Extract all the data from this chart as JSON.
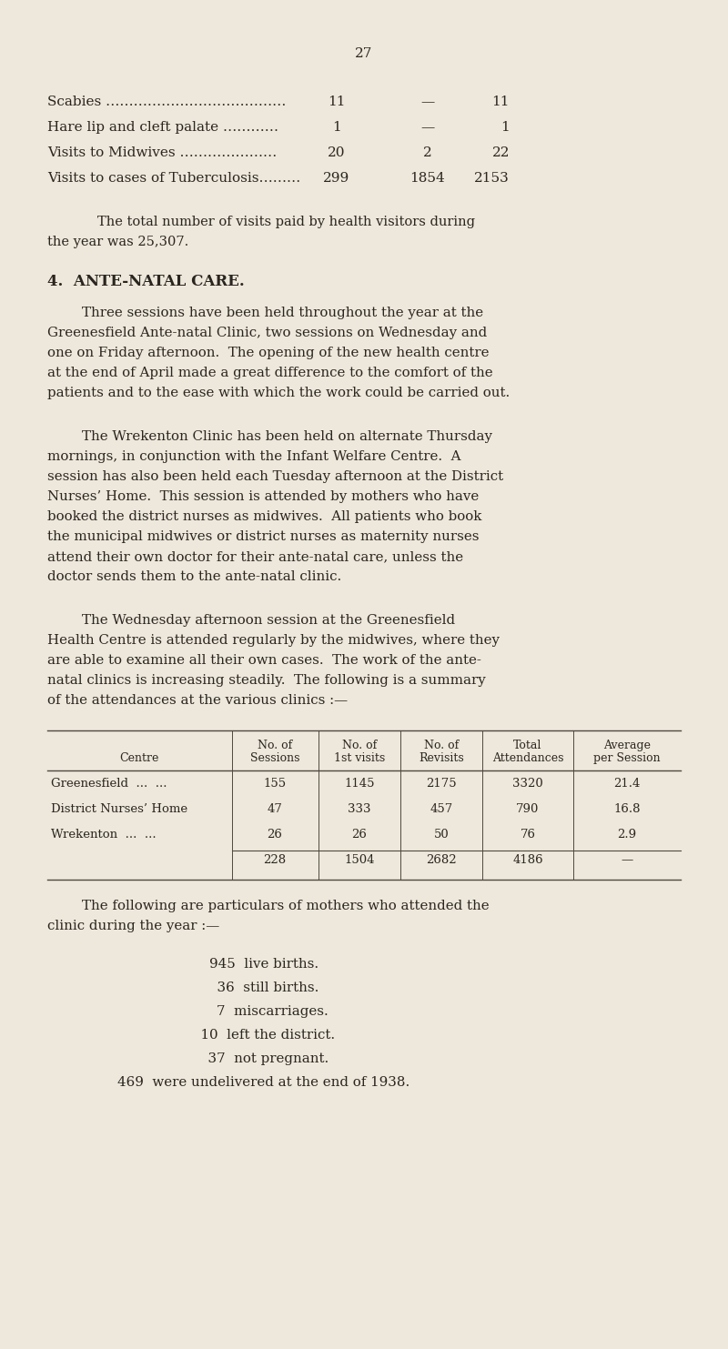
{
  "background_color": "#ede8db",
  "page_number": "27",
  "top_data_rows": [
    {
      "label": "Scabies …………………………………",
      "col1": "11",
      "col2": "—",
      "col3": "11"
    },
    {
      "label": "Hare lip and cleft palate …………",
      "col1": "1",
      "col2": "—",
      "col3": "1"
    },
    {
      "label": "Visits to Midwives …………………",
      "col1": "20",
      "col2": "2",
      "col3": "22"
    },
    {
      "label": "Visits to cases of Tuberculosis………",
      "col1": "299",
      "col2": "1854",
      "col3": "2153"
    }
  ],
  "para1_line1": "        The total number of visits paid by health visitors during",
  "para1_line2": "the year was 25,307.",
  "section_header": "4.  ANTE-NATAL CARE.",
  "para2": [
    "        Three sessions have been held throughout the year at the",
    "Greenesfield Ante-natal Clinic, two sessions on Wednesday and",
    "one on Friday afternoon.  The opening of the new health centre",
    "at the end of April made a great difference to the comfort of the",
    "patients and to the ease with which the work could be carried out."
  ],
  "para3": [
    "        The Wrekenton Clinic has been held on alternate Thursday",
    "mornings, in conjunction with the Infant Welfare Centre.  A",
    "session has also been held each Tuesday afternoon at the District",
    "Nurses’ Home.  This session is attended by mothers who have",
    "booked the district nurses as midwives.  All patients who book",
    "the municipal midwives or district nurses as maternity nurses",
    "attend their own doctor for their ante-natal care, unless the",
    "doctor sends them to the ante-natal clinic."
  ],
  "para4": [
    "        The Wednesday afternoon session at the Greenesfield",
    "Health Centre is attended regularly by the midwives, where they",
    "are able to examine all their own cases.  The work of the ante-",
    "natal clinics is increasing steadily.  The following is a summary",
    "of the attendances at the various clinics :—"
  ],
  "table_col_headers": [
    "Centre",
    "No. of\nSessions",
    "No. of\n1st visits",
    "No. of\nRevisits",
    "Total\nAttendances",
    "Average\nper Session"
  ],
  "table_rows": [
    [
      "Greenesfield  ...  ...",
      "155",
      "1145",
      "2175",
      "3320",
      "21.4"
    ],
    [
      "District Nurses’ Home",
      "47",
      "333",
      "457",
      "790",
      "16.8"
    ],
    [
      "Wrekenton  ...  ...",
      "26",
      "26",
      "50",
      "76",
      "2.9"
    ],
    [
      "",
      "228",
      "1504",
      "2682",
      "4186",
      "—"
    ]
  ],
  "para5": [
    "        The following are particulars of mothers who attended the",
    "clinic during the year :—"
  ],
  "bullet_items": [
    "945  live births.",
    "  36  still births.",
    "    7  miscarriages.",
    "  10  left the district.",
    "  37  not pregnant.",
    "469  were undelivered at the end of 1938."
  ],
  "text_color": "#2b2520",
  "line_color": "#504840"
}
